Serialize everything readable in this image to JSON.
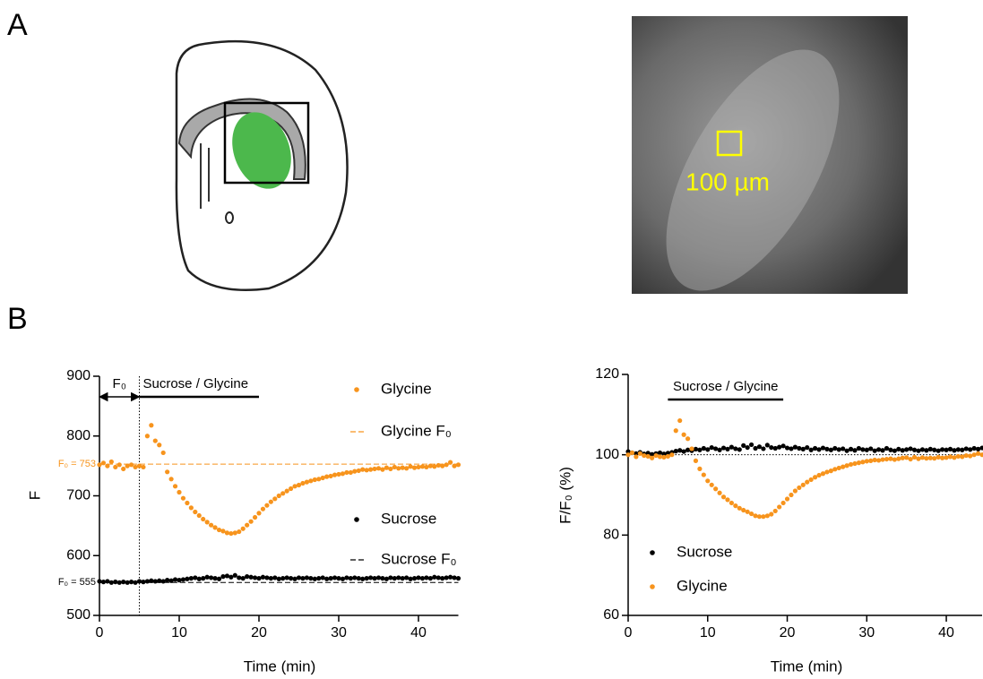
{
  "panels": {
    "a_label": "A",
    "b_label": "B",
    "scale_bar": "100 µm"
  },
  "chart_data": [
    {
      "type": "scatter",
      "xlabel": "Time (min)",
      "ylabel": "F",
      "xlim": [
        0,
        45
      ],
      "xticks": [
        0,
        10,
        20,
        30,
        40
      ],
      "ylim": [
        500,
        900
      ],
      "yticks": [
        500,
        600,
        700,
        800,
        900
      ],
      "x": [
        0,
        0.5,
        1,
        1.5,
        2,
        2.5,
        3,
        3.5,
        4,
        4.5,
        5,
        5.5,
        6,
        6.5,
        7,
        7.5,
        8,
        8.5,
        9,
        9.5,
        10,
        10.5,
        11,
        11.5,
        12,
        12.5,
        13,
        13.5,
        14,
        14.5,
        15,
        15.5,
        16,
        16.5,
        17,
        17.5,
        18,
        18.5,
        19,
        19.5,
        20,
        20.5,
        21,
        21.5,
        22,
        22.5,
        23,
        23.5,
        24,
        24.5,
        25,
        25.5,
        26,
        26.5,
        27,
        27.5,
        28,
        28.5,
        29,
        29.5,
        30,
        30.5,
        31,
        31.5,
        32,
        32.5,
        33,
        33.5,
        34,
        34.5,
        35,
        35.5,
        36,
        36.5,
        37,
        37.5,
        38,
        38.5,
        39,
        39.5,
        40,
        40.5,
        41,
        41.5,
        42,
        42.5,
        43,
        43.5,
        44,
        44.5,
        45
      ],
      "series": [
        {
          "name": "Glycine",
          "color": "#f7941d",
          "values": [
            752,
            755,
            750,
            757,
            748,
            752,
            745,
            750,
            752,
            748,
            750,
            748,
            800,
            818,
            792,
            785,
            772,
            740,
            728,
            716,
            706,
            696,
            688,
            680,
            673,
            667,
            661,
            656,
            651,
            647,
            643,
            641,
            638,
            637,
            638,
            640,
            645,
            651,
            657,
            664,
            671,
            678,
            684,
            690,
            695,
            700,
            704,
            708,
            712,
            716,
            718,
            721,
            723,
            725,
            727,
            728,
            730,
            732,
            733,
            735,
            736,
            737,
            739,
            739,
            741,
            742,
            744,
            743,
            744,
            745,
            746,
            744,
            747,
            745,
            748,
            746,
            747,
            746,
            749,
            747,
            748,
            749,
            748,
            750,
            749,
            751,
            750,
            752,
            756,
            750,
            752
          ]
        },
        {
          "name": "Sucrose",
          "color": "#000000",
          "values": [
            557,
            556,
            557,
            555,
            556,
            555,
            556,
            555,
            556,
            555,
            557,
            556,
            557,
            558,
            557,
            558,
            557,
            559,
            558,
            560,
            559,
            560,
            561,
            562,
            563,
            561,
            562,
            564,
            563,
            562,
            561,
            565,
            566,
            564,
            567,
            563,
            562,
            565,
            564,
            563,
            562,
            564,
            563,
            562,
            563,
            561,
            562,
            563,
            562,
            561,
            563,
            562,
            563,
            562,
            561,
            562,
            563,
            561,
            562,
            563,
            562,
            561,
            563,
            562,
            563,
            562,
            561,
            562,
            563,
            562,
            563,
            562,
            561,
            563,
            562,
            563,
            562,
            563,
            561,
            562,
            563,
            562,
            563,
            562,
            564,
            563,
            562,
            563,
            564,
            563,
            562
          ]
        }
      ],
      "reference_lines": [
        {
          "name": "Glycine F₀",
          "value": 753,
          "label": "F₀ = 753",
          "color": "#f7941d",
          "style": "dashed"
        },
        {
          "name": "Sucrose F₀",
          "value": 555,
          "label": "F₀ = 555",
          "color": "#000000",
          "style": "dashed"
        }
      ],
      "vline": 5,
      "annotations": [
        {
          "text": "F₀",
          "span": [
            0,
            5
          ]
        },
        {
          "text": "Sucrose / Glycine",
          "span": [
            5,
            20
          ]
        }
      ]
    },
    {
      "type": "scatter",
      "xlabel": "Time (min)",
      "ylabel": "F/F₀ (%)",
      "xlim": [
        0,
        44.5
      ],
      "xticks": [
        0,
        10,
        20,
        30,
        40
      ],
      "ylim": [
        60,
        120
      ],
      "yticks": [
        60,
        80,
        100,
        120
      ],
      "x": [
        0,
        0.5,
        1,
        1.5,
        2,
        2.5,
        3,
        3.5,
        4,
        4.5,
        5,
        5.5,
        6,
        6.5,
        7,
        7.5,
        8,
        8.5,
        9,
        9.5,
        10,
        10.5,
        11,
        11.5,
        12,
        12.5,
        13,
        13.5,
        14,
        14.5,
        15,
        15.5,
        16,
        16.5,
        17,
        17.5,
        18,
        18.5,
        19,
        19.5,
        20,
        20.5,
        21,
        21.5,
        22,
        22.5,
        23,
        23.5,
        24,
        24.5,
        25,
        25.5,
        26,
        26.5,
        27,
        27.5,
        28,
        28.5,
        29,
        29.5,
        30,
        30.5,
        31,
        31.5,
        32,
        32.5,
        33,
        33.5,
        34,
        34.5,
        35,
        35.5,
        36,
        36.5,
        37,
        37.5,
        38,
        38.5,
        39,
        39.5,
        40,
        40.5,
        41,
        41.5,
        42,
        42.5,
        43,
        43.5,
        44,
        44.5
      ],
      "series": [
        {
          "name": "Sucrose",
          "color": "#000000",
          "values": [
            100.8,
            100.5,
            100.3,
            100.6,
            100.2,
            100.4,
            100.1,
            100.3,
            100.5,
            100.2,
            100.4,
            100.6,
            100.9,
            101.1,
            100.8,
            101.2,
            101,
            101.4,
            101.2,
            101.6,
            101.3,
            101.8,
            101.5,
            101.2,
            101.7,
            101.4,
            101.9,
            101.5,
            101.3,
            102.3,
            101.8,
            102.5,
            101.6,
            102,
            101.5,
            102.4,
            101.8,
            101.6,
            101.9,
            102.2,
            101.7,
            101.5,
            101.9,
            101.6,
            101.4,
            101.8,
            101.2,
            101.6,
            101.3,
            101.7,
            101.4,
            101.2,
            101.6,
            101.3,
            101.5,
            101,
            101.4,
            101.1,
            101.6,
            101.3,
            101.2,
            101.5,
            101,
            101.3,
            101.1,
            101.6,
            101.2,
            101,
            101.4,
            101.1,
            101.3,
            101.5,
            101.2,
            101,
            101.3,
            101.1,
            101.4,
            101.2,
            101,
            101.3,
            101.2,
            101.4,
            101.1,
            101.3,
            101.2,
            101.5,
            101.3,
            101.6,
            101.4,
            101.7
          ]
        },
        {
          "name": "Glycine",
          "color": "#f7941d",
          "values": [
            100,
            100.5,
            99.5,
            100.3,
            99.8,
            99.6,
            99.2,
            99.8,
            99.5,
            99.4,
            99.6,
            100,
            106,
            108.5,
            105,
            104,
            101.5,
            98.5,
            96.5,
            95,
            93.5,
            92.5,
            91.5,
            90.5,
            89.5,
            88.8,
            88,
            87.3,
            86.7,
            86.2,
            85.8,
            85.3,
            84.8,
            84.6,
            84.6,
            84.8,
            85.2,
            86,
            87,
            88,
            89,
            90,
            91,
            91.8,
            92.5,
            93.2,
            93.8,
            94.4,
            94.9,
            95.3,
            95.7,
            96,
            96.4,
            96.7,
            97,
            97.3,
            97.6,
            97.8,
            98,
            98.2,
            98.4,
            98.5,
            98.7,
            98.6,
            98.8,
            98.9,
            99,
            98.8,
            99,
            99.2,
            99.3,
            98.9,
            99.4,
            99,
            99.3,
            99.1,
            99.2,
            99.1,
            99.4,
            99.2,
            99.3,
            99.5,
            99.3,
            99.6,
            99.5,
            99.8,
            99.7,
            100,
            100.3,
            100
          ]
        }
      ],
      "reference_lines": [
        {
          "value": 100,
          "color": "#000000",
          "style": "dotted"
        }
      ],
      "annotations": [
        {
          "text": "Sucrose / Glycine",
          "span": [
            5,
            19.5
          ]
        }
      ]
    }
  ]
}
